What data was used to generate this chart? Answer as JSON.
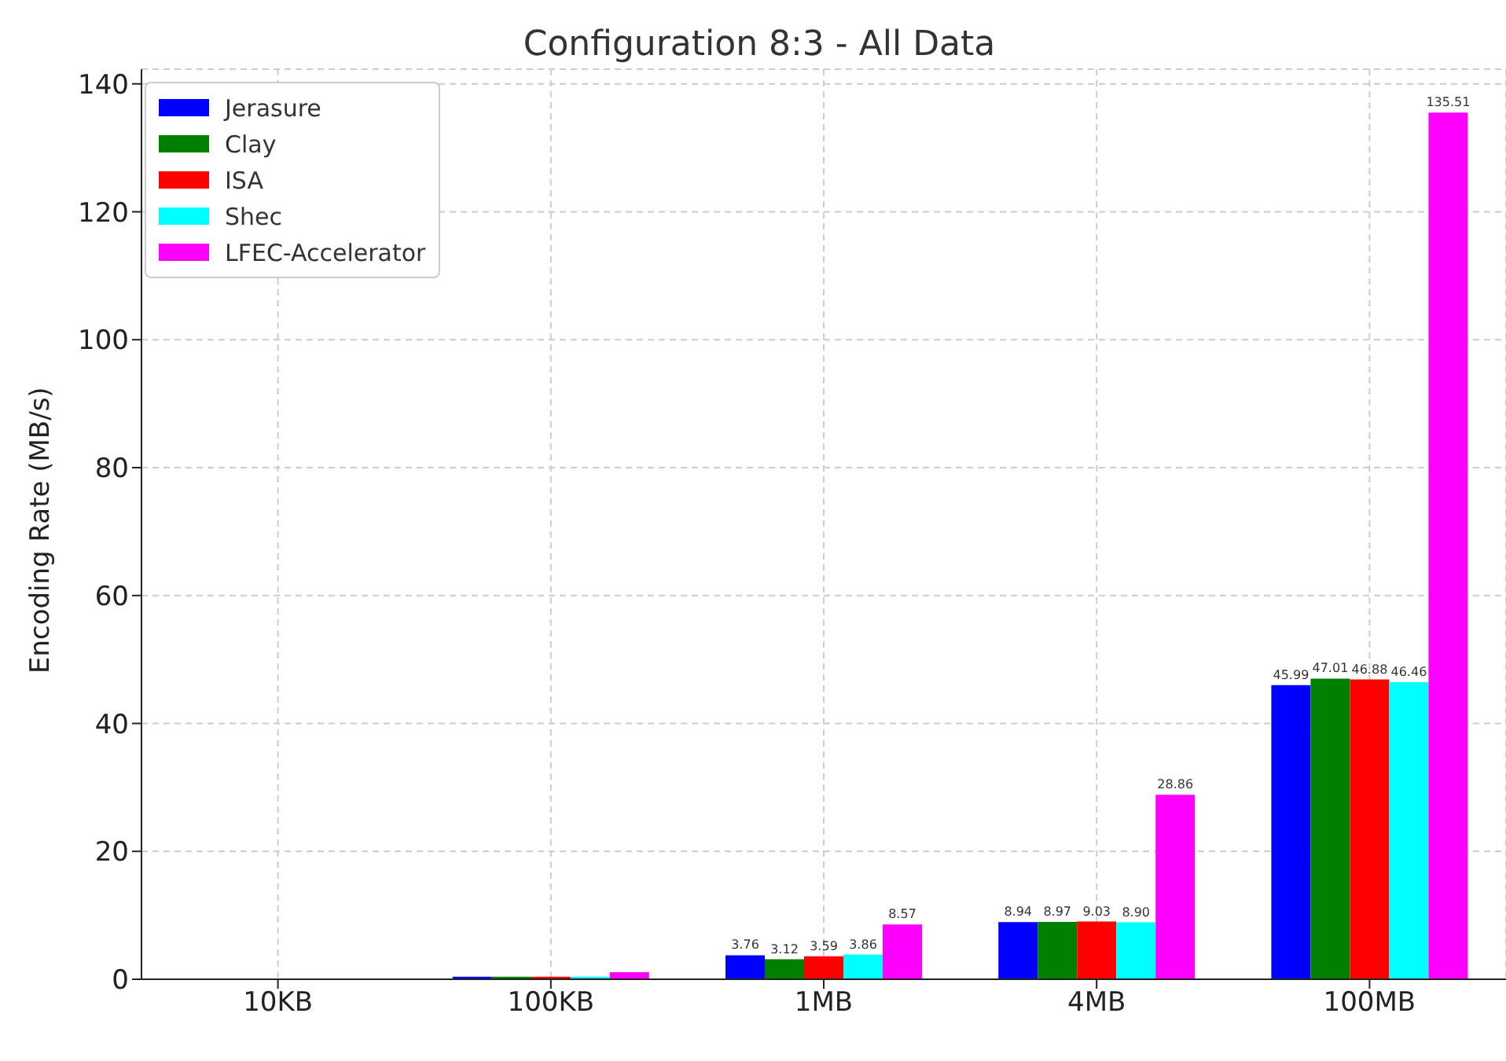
{
  "chart_data": {
    "type": "bar",
    "title": "Configuration 8:3 - All Data",
    "ylabel": "Encoding Rate (MB/s)",
    "categories": [
      "10KB",
      "100KB",
      "1MB",
      "4MB",
      "100MB"
    ],
    "series": [
      {
        "name": "Jerasure",
        "color": "#0000ff",
        "values": [
          0,
          0.4,
          3.76,
          8.94,
          45.99
        ],
        "value_labels": [
          null,
          null,
          "3.76",
          "8.94",
          "45.99"
        ]
      },
      {
        "name": "Clay",
        "color": "#008000",
        "values": [
          0,
          0.4,
          3.12,
          8.97,
          47.01
        ],
        "value_labels": [
          null,
          null,
          "3.12",
          "8.97",
          "47.01"
        ]
      },
      {
        "name": "ISA",
        "color": "#ff0000",
        "values": [
          0,
          0.4,
          3.59,
          9.03,
          46.88
        ],
        "value_labels": [
          null,
          null,
          "3.59",
          "9.03",
          "46.88"
        ]
      },
      {
        "name": "Shec",
        "color": "#00ffff",
        "values": [
          0,
          0.4,
          3.86,
          8.9,
          46.46
        ],
        "value_labels": [
          null,
          null,
          "3.86",
          "8.90",
          "46.46"
        ]
      },
      {
        "name": "LFEC-Accelerator",
        "color": "#ff00ff",
        "values": [
          0,
          1.1,
          8.57,
          28.86,
          135.51
        ],
        "value_labels": [
          null,
          null,
          "8.57",
          "28.86",
          "135.51"
        ]
      }
    ],
    "ylim": [
      0,
      142.3
    ],
    "yticks": [
      0,
      20,
      40,
      60,
      80,
      100,
      120,
      140
    ],
    "grid": true,
    "legend": "top left"
  }
}
